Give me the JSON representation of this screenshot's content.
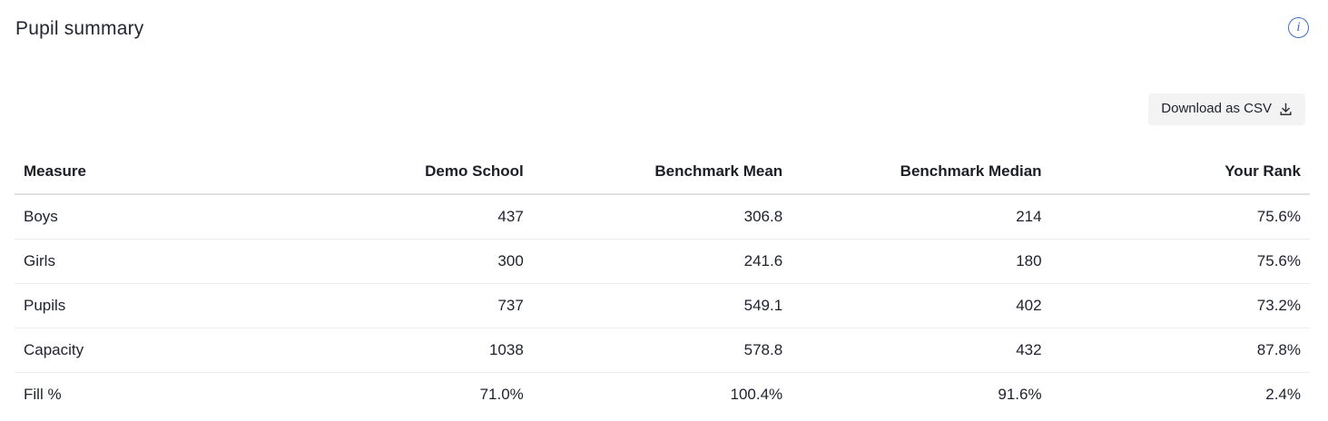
{
  "header": {
    "title": "Pupil summary",
    "info_icon_glyph": "i"
  },
  "toolbar": {
    "download_label": "Download as CSV",
    "download_icon": "tray-arrow-down-icon"
  },
  "table": {
    "columns": [
      "Measure",
      "Demo School",
      "Benchmark Mean",
      "Benchmark Median",
      "Your Rank"
    ],
    "rows": [
      [
        "Boys",
        "437",
        "306.8",
        "214",
        "75.6%"
      ],
      [
        "Girls",
        "300",
        "241.6",
        "180",
        "75.6%"
      ],
      [
        "Pupils",
        "737",
        "549.1",
        "402",
        "73.2%"
      ],
      [
        "Capacity",
        "1038",
        "578.8",
        "432",
        "87.8%"
      ],
      [
        "Fill %",
        "71.0%",
        "100.4%",
        "91.6%",
        "2.4%"
      ]
    ]
  },
  "colors": {
    "accent_blue": "#3e6fc1",
    "text_dark": "#23252e",
    "header_border": "#e0e0e0",
    "row_border": "#ececec",
    "button_bg": "#f3f3f4"
  }
}
